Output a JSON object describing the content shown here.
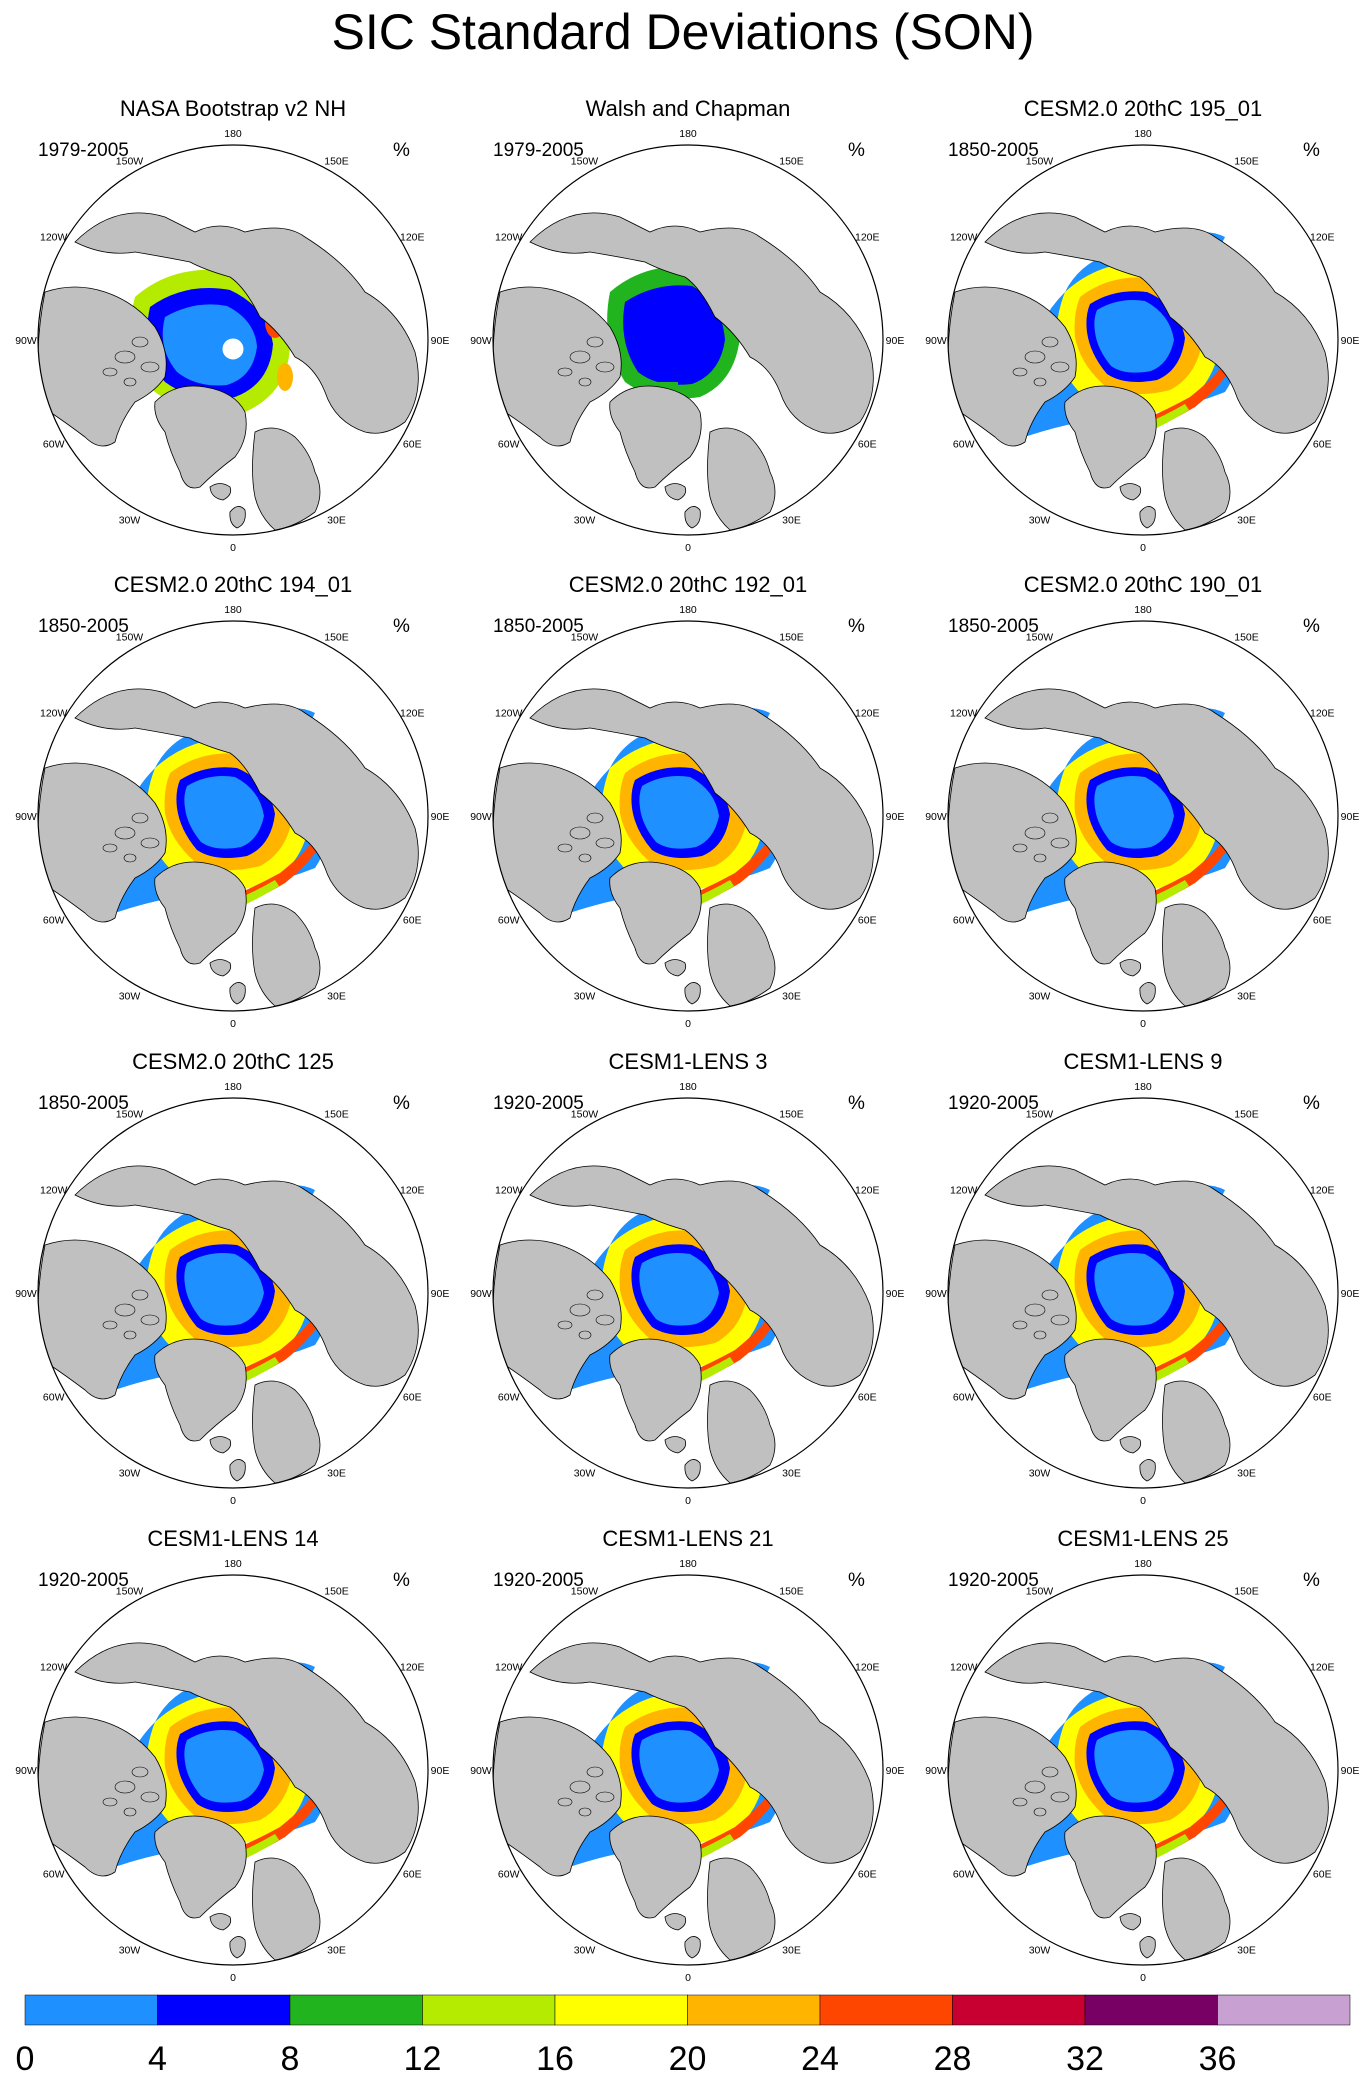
{
  "title": "SIC Standard Deviations (SON)",
  "units_label": "%",
  "longitude_labels": [
    "180",
    "150W",
    "150E",
    "120W",
    "120E",
    "90W",
    "90E",
    "60W",
    "60E",
    "30W",
    "30E",
    "0"
  ],
  "panels": [
    {
      "title": "NASA Bootstrap v2 NH",
      "period": "1979-2005",
      "style": "obs_bootstrap"
    },
    {
      "title": "Walsh and Chapman",
      "period": "1979-2005",
      "style": "obs_walsh"
    },
    {
      "title": "CESM2.0 20thC 195_01",
      "period": "1850-2005",
      "style": "model"
    },
    {
      "title": "CESM2.0 20thC 194_01",
      "period": "1850-2005",
      "style": "model"
    },
    {
      "title": "CESM2.0 20thC 192_01",
      "period": "1850-2005",
      "style": "model"
    },
    {
      "title": "CESM2.0 20thC 190_01",
      "period": "1850-2005",
      "style": "model"
    },
    {
      "title": "CESM2.0 20thC 125",
      "period": "1850-2005",
      "style": "model"
    },
    {
      "title": "CESM1-LENS 3",
      "period": "1920-2005",
      "style": "model"
    },
    {
      "title": "CESM1-LENS 9",
      "period": "1920-2005",
      "style": "model"
    },
    {
      "title": "CESM1-LENS 14",
      "period": "1920-2005",
      "style": "model"
    },
    {
      "title": "CESM1-LENS 21",
      "period": "1920-2005",
      "style": "model"
    },
    {
      "title": "CESM1-LENS 25",
      "period": "1920-2005",
      "style": "model"
    }
  ],
  "colorbar": {
    "colors": [
      "#1e90ff",
      "#0000ff",
      "#22b41e",
      "#b4eb00",
      "#ffff00",
      "#ffb400",
      "#ff4600",
      "#c80032",
      "#780064",
      "#c8a0d2"
    ],
    "tick_labels": [
      "0",
      "4",
      "8",
      "12",
      "16",
      "20",
      "24",
      "28",
      "32",
      "36"
    ]
  },
  "land_color": "#c0c0c0"
}
